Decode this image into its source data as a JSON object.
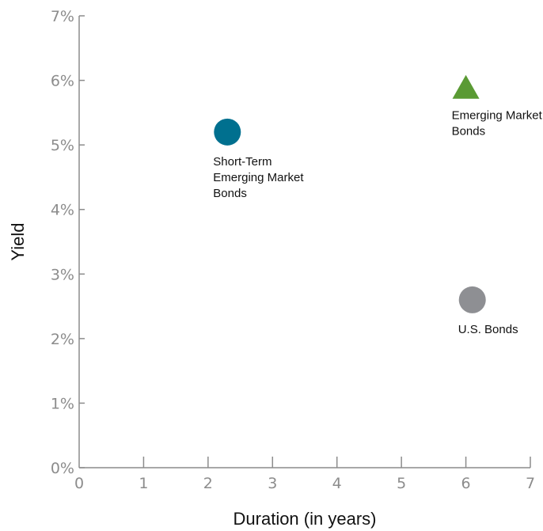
{
  "chart_data": {
    "type": "scatter",
    "title": "",
    "xlabel": "Duration (in years)",
    "ylabel": "Yield",
    "xlim": [
      0,
      7
    ],
    "ylim": [
      0,
      7
    ],
    "x_ticks": [
      "0",
      "1",
      "2",
      "3",
      "4",
      "5",
      "6",
      "7"
    ],
    "y_ticks": [
      "0%",
      "1%",
      "2%",
      "3%",
      "4%",
      "5%",
      "6%",
      "7%"
    ],
    "grid": false,
    "legend": "none",
    "points": [
      {
        "label_lines": [
          "Short-Term",
          "Emerging Market",
          "Bonds"
        ],
        "x": 2.3,
        "y": 5.2,
        "marker": "circle",
        "color": "#00708f",
        "label_position": "below"
      },
      {
        "label_lines": [
          "Emerging Market",
          "Bonds"
        ],
        "x": 6.0,
        "y": 5.9,
        "marker": "triangle",
        "color": "#5a9a34",
        "label_position": "below"
      },
      {
        "label_lines": [
          "U.S. Bonds"
        ],
        "x": 6.1,
        "y": 2.6,
        "marker": "circle",
        "color": "#8e8f93",
        "label_position": "below"
      }
    ]
  }
}
